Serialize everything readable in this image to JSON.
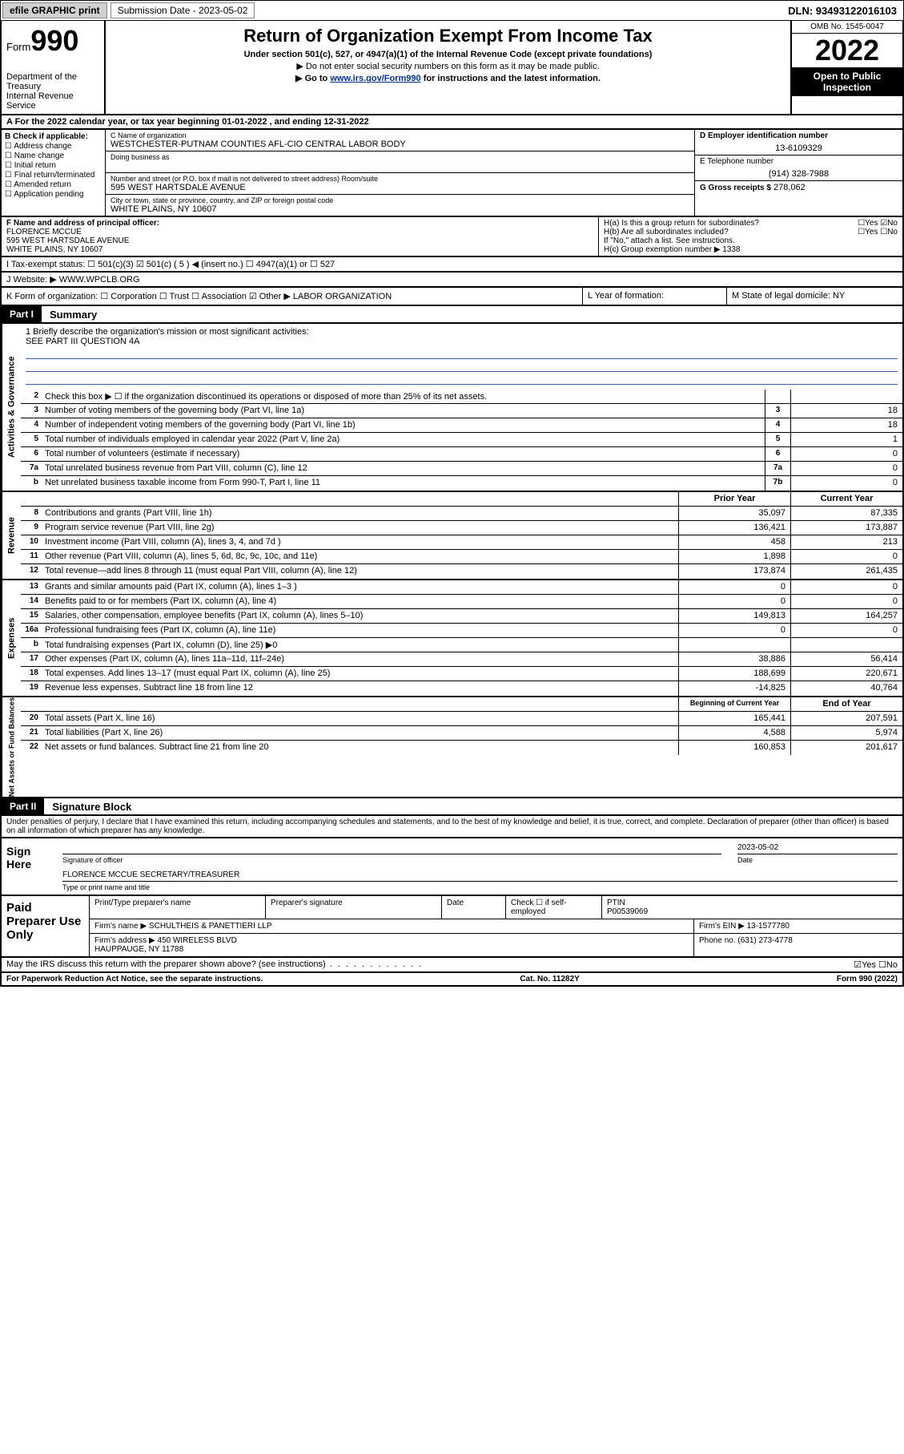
{
  "topbar": {
    "efile": "efile GRAPHIC print",
    "subdate_label": "Submission Date - 2023-05-02",
    "dln": "DLN: 93493122016103"
  },
  "header": {
    "form_label": "Form",
    "form_number": "990",
    "dept": "Department of the Treasury\nInternal Revenue Service",
    "title": "Return of Organization Exempt From Income Tax",
    "sub1": "Under section 501(c), 527, or 4947(a)(1) of the Internal Revenue Code (except private foundations)",
    "sub2": "▶ Do not enter social security numbers on this form as it may be made public.",
    "sub3_pre": "▶ Go to ",
    "sub3_link": "www.irs.gov/Form990",
    "sub3_post": " for instructions and the latest information.",
    "omb": "OMB No. 1545-0047",
    "year": "2022",
    "open": "Open to Public Inspection"
  },
  "row_a": "A For the 2022 calendar year, or tax year beginning 01-01-2022   , and ending 12-31-2022",
  "col_b": {
    "title": "B Check if applicable:",
    "items": [
      "Address change",
      "Name change",
      "Initial return",
      "Final return/terminated",
      "Amended return",
      "Application pending"
    ]
  },
  "col_c": {
    "name_lbl": "C Name of organization",
    "name": "WESTCHESTER-PUTNAM COUNTIES AFL-CIO CENTRAL LABOR BODY",
    "dba_lbl": "Doing business as",
    "addr_lbl": "Number and street (or P.O. box if mail is not delivered to street address)    Room/suite",
    "addr": "595 WEST HARTSDALE AVENUE",
    "city_lbl": "City or town, state or province, country, and ZIP or foreign postal code",
    "city": "WHITE PLAINS, NY  10607"
  },
  "col_d": {
    "ein_lbl": "D Employer identification number",
    "ein": "13-6109329",
    "tel_lbl": "E Telephone number",
    "tel": "(914) 328-7988",
    "gross_lbl": "G Gross receipts $",
    "gross": "278,062"
  },
  "row_f": {
    "f_lbl": "F Name and address of principal officer:",
    "f_name": "FLORENCE MCCUE",
    "f_addr": "595 WEST HARTSDALE AVENUE\nWHITE PLAINS, NY  10607",
    "ha": "H(a) Is this a group return for subordinates?",
    "ha_ans": "☐Yes ☑No",
    "hb": "H(b) Are all subordinates included?",
    "hb_ans": "☐Yes ☐No",
    "hb_note": "If \"No,\" attach a list. See instructions.",
    "hc": "H(c) Group exemption number ▶  1338"
  },
  "row_i": "I   Tax-exempt status:    ☐ 501(c)(3)   ☑ 501(c) ( 5 ) ◀ (insert no.)    ☐ 4947(a)(1) or   ☐ 527",
  "row_j": "J   Website: ▶  WWW.WPCLB.ORG",
  "row_k": {
    "k": "K Form of organization:  ☐ Corporation  ☐ Trust  ☐ Association  ☑ Other ▶ LABOR ORGANIZATION",
    "l": "L Year of formation:",
    "m": "M State of legal domicile: NY"
  },
  "part1": {
    "tag": "Part I",
    "title": "Summary"
  },
  "mission": {
    "q1": "1  Briefly describe the organization's mission or most significant activities:",
    "ans": "SEE PART III QUESTION 4A"
  },
  "gov_rows": [
    {
      "n": "2",
      "d": "Check this box ▶ ☐  if the organization discontinued its operations or disposed of more than 25% of its net assets.",
      "b": "",
      "v": ""
    },
    {
      "n": "3",
      "d": "Number of voting members of the governing body (Part VI, line 1a)",
      "b": "3",
      "v": "18"
    },
    {
      "n": "4",
      "d": "Number of independent voting members of the governing body (Part VI, line 1b)",
      "b": "4",
      "v": "18"
    },
    {
      "n": "5",
      "d": "Total number of individuals employed in calendar year 2022 (Part V, line 2a)",
      "b": "5",
      "v": "1"
    },
    {
      "n": "6",
      "d": "Total number of volunteers (estimate if necessary)",
      "b": "6",
      "v": "0"
    },
    {
      "n": "7a",
      "d": "Total unrelated business revenue from Part VIII, column (C), line 12",
      "b": "7a",
      "v": "0"
    },
    {
      "n": "b",
      "d": "Net unrelated business taxable income from Form 990-T, Part I, line 11",
      "b": "7b",
      "v": "0"
    }
  ],
  "rev_hdr": {
    "py": "Prior Year",
    "cy": "Current Year"
  },
  "rev_rows": [
    {
      "n": "8",
      "d": "Contributions and grants (Part VIII, line 1h)",
      "py": "35,097",
      "cy": "87,335"
    },
    {
      "n": "9",
      "d": "Program service revenue (Part VIII, line 2g)",
      "py": "136,421",
      "cy": "173,887"
    },
    {
      "n": "10",
      "d": "Investment income (Part VIII, column (A), lines 3, 4, and 7d )",
      "py": "458",
      "cy": "213"
    },
    {
      "n": "11",
      "d": "Other revenue (Part VIII, column (A), lines 5, 6d, 8c, 9c, 10c, and 11e)",
      "py": "1,898",
      "cy": "0"
    },
    {
      "n": "12",
      "d": "Total revenue—add lines 8 through 11 (must equal Part VIII, column (A), line 12)",
      "py": "173,874",
      "cy": "261,435"
    }
  ],
  "exp_rows": [
    {
      "n": "13",
      "d": "Grants and similar amounts paid (Part IX, column (A), lines 1–3 )",
      "py": "0",
      "cy": "0"
    },
    {
      "n": "14",
      "d": "Benefits paid to or for members (Part IX, column (A), line 4)",
      "py": "0",
      "cy": "0"
    },
    {
      "n": "15",
      "d": "Salaries, other compensation, employee benefits (Part IX, column (A), lines 5–10)",
      "py": "149,813",
      "cy": "164,257"
    },
    {
      "n": "16a",
      "d": "Professional fundraising fees (Part IX, column (A), line 11e)",
      "py": "0",
      "cy": "0"
    },
    {
      "n": "b",
      "d": "Total fundraising expenses (Part IX, column (D), line 25) ▶0",
      "py": "",
      "cy": ""
    },
    {
      "n": "17",
      "d": "Other expenses (Part IX, column (A), lines 11a–11d, 11f–24e)",
      "py": "38,886",
      "cy": "56,414"
    },
    {
      "n": "18",
      "d": "Total expenses. Add lines 13–17 (must equal Part IX, column (A), line 25)",
      "py": "188,699",
      "cy": "220,671"
    },
    {
      "n": "19",
      "d": "Revenue less expenses. Subtract line 18 from line 12",
      "py": "-14,825",
      "cy": "40,764"
    }
  ],
  "na_hdr": {
    "py": "Beginning of Current Year",
    "cy": "End of Year"
  },
  "na_rows": [
    {
      "n": "20",
      "d": "Total assets (Part X, line 16)",
      "py": "165,441",
      "cy": "207,591"
    },
    {
      "n": "21",
      "d": "Total liabilities (Part X, line 26)",
      "py": "4,588",
      "cy": "5,974"
    },
    {
      "n": "22",
      "d": "Net assets or fund balances. Subtract line 21 from line 20",
      "py": "160,853",
      "cy": "201,617"
    }
  ],
  "part2": {
    "tag": "Part II",
    "title": "Signature Block"
  },
  "sig_decl": "Under penalties of perjury, I declare that I have examined this return, including accompanying schedules and statements, and to the best of my knowledge and belief, it is true, correct, and complete. Declaration of preparer (other than officer) is based on all information of which preparer has any knowledge.",
  "sign": {
    "label": "Sign Here",
    "sig_lbl": "Signature of officer",
    "date": "2023-05-02",
    "date_lbl": "Date",
    "name": "FLORENCE MCCUE  SECRETARY/TREASURER",
    "name_lbl": "Type or print name and title"
  },
  "prep": {
    "label": "Paid Preparer Use Only",
    "r1": {
      "c1": "Print/Type preparer's name",
      "c2": "Preparer's signature",
      "c3": "Date",
      "c4": "Check ☐ if self-employed",
      "c5": "PTIN\nP00539069"
    },
    "r2": {
      "c1": "Firm's name    ▶ SCHULTHEIS & PANETTIERI LLP",
      "c2": "Firm's EIN ▶ 13-1577780"
    },
    "r3": {
      "c1": "Firm's address ▶ 450 WIRELESS BLVD\n                        HAUPPAUGE, NY  11788",
      "c2": "Phone no. (631) 273-4778"
    }
  },
  "discuss": "May the IRS discuss this return with the preparer shown above? (see instructions)",
  "discuss_ans": "☑Yes  ☐No",
  "footer": {
    "left": "For Paperwork Reduction Act Notice, see the separate instructions.",
    "mid": "Cat. No. 11282Y",
    "right": "Form 990 (2022)"
  },
  "vside": {
    "gov": "Activities & Governance",
    "rev": "Revenue",
    "exp": "Expenses",
    "na": "Net Assets or Fund Balances"
  }
}
